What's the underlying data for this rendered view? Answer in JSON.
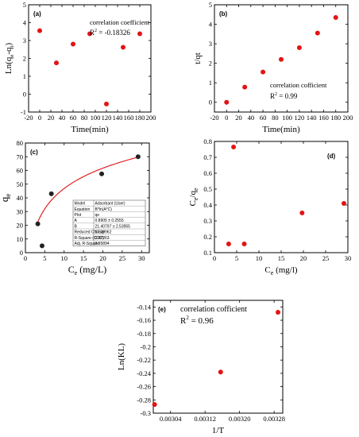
{
  "colors": {
    "point": "#e41414",
    "ball": "#222222",
    "fit": "#e01010",
    "axis": "#000000"
  },
  "chart_data": [
    {
      "id": "a",
      "panel_label": "(a)",
      "type": "scatter",
      "xlabel": "Time(min)",
      "ylabel": "Ln(qe-qt)",
      "xlim": [
        -20,
        200
      ],
      "ylim": [
        -1,
        5
      ],
      "xticks": [
        -20,
        0,
        20,
        40,
        60,
        80,
        100,
        120,
        140,
        160,
        180,
        200
      ],
      "yticks": [
        -1,
        0,
        1,
        2,
        3,
        4,
        5
      ],
      "x": [
        0,
        30,
        60,
        90,
        120,
        150,
        180
      ],
      "y": [
        3.55,
        1.75,
        2.8,
        3.38,
        -0.55,
        2.62,
        3.38
      ],
      "annotations": [
        "correlation coefficient",
        "R2 = -0.18326"
      ],
      "marker": "red-dot"
    },
    {
      "id": "b",
      "panel_label": "(b)",
      "type": "scatter",
      "xlabel": "Time(min)",
      "ylabel": "t/qt",
      "xlim": [
        -20,
        200
      ],
      "ylim": [
        -0.5,
        5
      ],
      "xticks": [
        -20,
        0,
        20,
        40,
        60,
        80,
        100,
        120,
        140,
        160,
        180,
        200
      ],
      "yticks": [
        0,
        1,
        2,
        3,
        4,
        5
      ],
      "x": [
        0,
        30,
        60,
        90,
        120,
        150,
        180
      ],
      "y": [
        0.0,
        0.78,
        1.55,
        2.2,
        2.8,
        3.55,
        4.35
      ],
      "annotations": [
        "correlation cofficient",
        "R2 = 0.99"
      ],
      "marker": "red-dot"
    },
    {
      "id": "c",
      "panel_label": "(c)",
      "type": "scatter",
      "xlabel": "Ce (mg/L)",
      "ylabel": "qe",
      "xlim": [
        0,
        32
      ],
      "ylim": [
        0,
        80
      ],
      "xticks": [
        0,
        5,
        10,
        15,
        20,
        25,
        30
      ],
      "yticks": [
        0,
        10,
        20,
        30,
        40,
        50,
        60,
        70,
        80
      ],
      "x": [
        3.2,
        4.3,
        6.7,
        19.7,
        29.1
      ],
      "y": [
        21,
        5,
        43,
        57.5,
        70
      ],
      "fit": {
        "A": 0.8905,
        "B": 21.40797,
        "x_start": 3.2,
        "x_end": 29.1
      },
      "marker": "black-ball",
      "stats_table": [
        [
          "Model",
          "Adsorbant (User)"
        ],
        [
          "Equation",
          "B*ln(A*C)"
        ],
        [
          "Plot",
          "qe"
        ],
        [
          "A",
          "0.8905 ± 0.2555"
        ],
        [
          "B",
          "21.40797 ± 2.53955"
        ],
        [
          "Reduced Chi-Sqr",
          "18.39962"
        ],
        [
          "R-Square (COD)",
          "0.97263"
        ],
        [
          "Adj. R-Square",
          "0.95894"
        ]
      ]
    },
    {
      "id": "d",
      "panel_label": "(d)",
      "type": "scatter",
      "xlabel": "Ce (mg/l)",
      "ylabel": "Ce/qe",
      "xlim": [
        0,
        30
      ],
      "ylim": [
        0.1,
        0.8
      ],
      "xticks": [
        0,
        5,
        10,
        15,
        20,
        25,
        30
      ],
      "yticks": [
        0.1,
        0.2,
        0.3,
        0.4,
        0.5,
        0.6,
        0.7,
        0.8
      ],
      "x": [
        3.2,
        4.3,
        6.7,
        19.7,
        29.1
      ],
      "y": [
        0.155,
        0.765,
        0.155,
        0.35,
        0.41
      ],
      "marker": "red-dot"
    },
    {
      "id": "e",
      "panel_label": "(e)",
      "type": "scatter",
      "xlabel": "1/T",
      "ylabel": "Ln(KL)",
      "xlim": [
        0.003,
        0.0033
      ],
      "ylim": [
        -0.3,
        -0.13
      ],
      "xticks": [
        0.00304,
        0.00312,
        0.0032,
        0.00328
      ],
      "xticklabels": [
        "0.00304",
        "0.00312",
        "0.00320",
        "0.00328"
      ],
      "yticks": [
        -0.3,
        -0.28,
        -0.26,
        -0.24,
        -0.22,
        -0.2,
        -0.18,
        -0.16,
        -0.14
      ],
      "x": [
        0.003003,
        0.003156,
        0.003289
      ],
      "y": [
        -0.287,
        -0.238,
        -0.148
      ],
      "annotations": [
        "correlation cofficient",
        "R2 = 0.96"
      ],
      "marker": "red-dot"
    }
  ]
}
